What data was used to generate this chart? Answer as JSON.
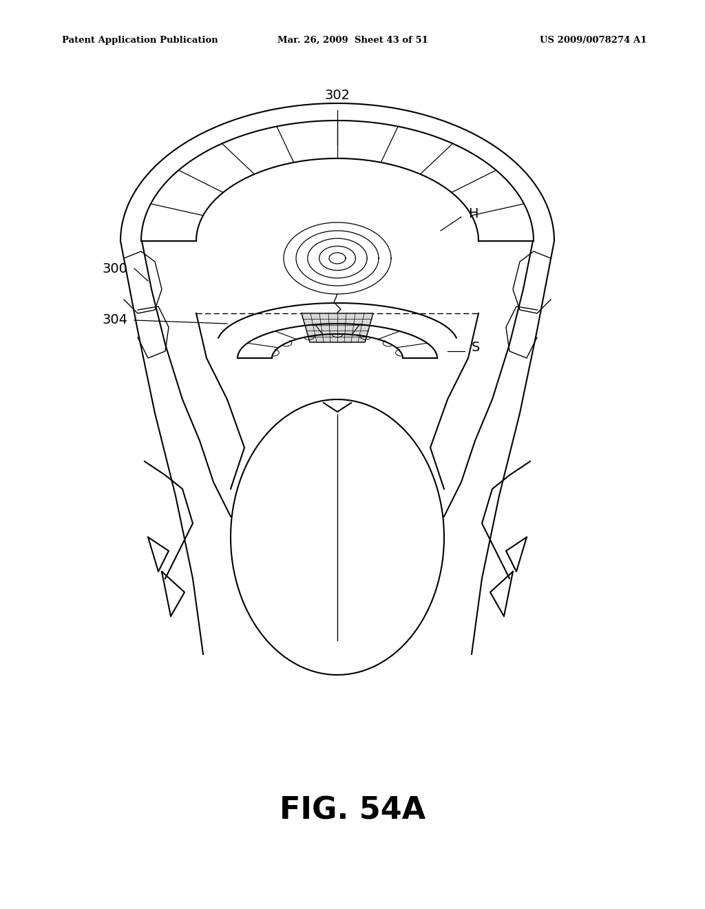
{
  "header_left": "Patent Application Publication",
  "header_mid": "Mar. 26, 2009  Sheet 43 of 51",
  "header_right": "US 2009/0078274 A1",
  "figure_label": "FIG. 54A",
  "bg_color": "#ffffff",
  "line_color": "#000000",
  "lw": 1.5
}
